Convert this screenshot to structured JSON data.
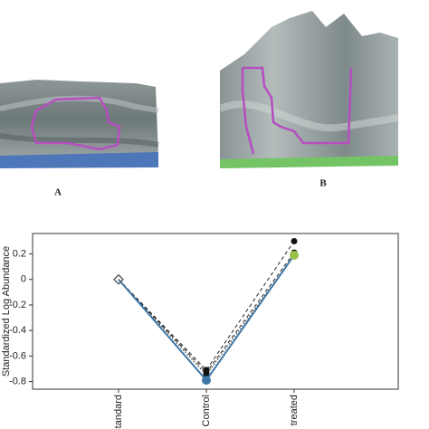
{
  "panel_labels": [
    "A",
    "B"
  ],
  "chart_data": {
    "type": "line",
    "ylabel": "Standardized Log Abundance",
    "categories": [
      "Standard",
      "Control",
      "treated"
    ],
    "ylim": [
      -0.86,
      0.36
    ],
    "yticks": [
      0.2,
      0,
      -0.2,
      -0.4,
      -0.6,
      -0.8
    ],
    "series": [
      {
        "color": "#222222",
        "dash": "4,3",
        "values": [
          0,
          -0.71,
          0.3
        ]
      },
      {
        "color": "#222222",
        "dash": "4,3",
        "values": [
          0,
          -0.73,
          0.21
        ]
      },
      {
        "color": "#222222",
        "dash": "1.5,2",
        "values": [
          0,
          -0.75,
          0.19
        ]
      },
      {
        "color": "#3f78a8",
        "dash": "none",
        "values": [
          0,
          -0.79,
          0.19
        ]
      }
    ]
  }
}
